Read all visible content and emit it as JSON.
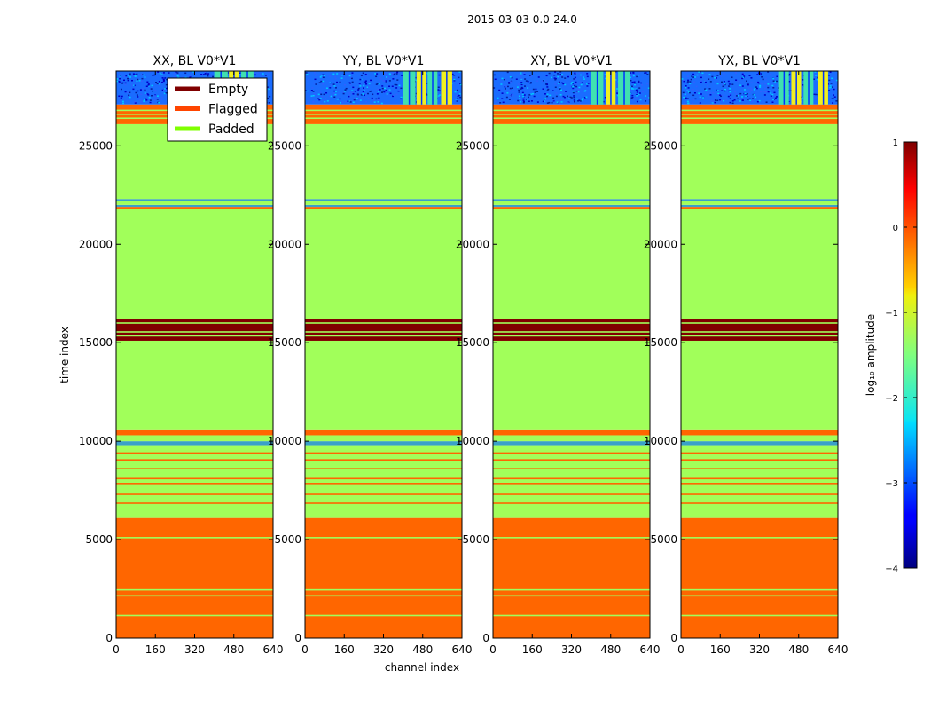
{
  "chart_data": {
    "type": "heatmap",
    "suptitle": "2015-03-03 0.0-24.0",
    "xlabel": "channel index",
    "ylabel": "time index",
    "x_ticks": [
      "0",
      "160",
      "320",
      "480",
      "640"
    ],
    "y_ticks": [
      "0",
      "5000",
      "10000",
      "15000",
      "20000",
      "25000"
    ],
    "x_range": [
      0,
      640
    ],
    "y_range": [
      0,
      28800
    ],
    "panels": [
      {
        "title": "XX, BL V0*V1",
        "hot_bands": [
          [
            400,
            455
          ],
          [
            460,
            500
          ],
          [
            510,
            560
          ]
        ]
      },
      {
        "title": "YY, BL V0*V1",
        "hot_bands": [
          [
            400,
            450
          ],
          [
            455,
            495
          ],
          [
            500,
            540
          ],
          [
            555,
            600
          ]
        ]
      },
      {
        "title": "XY, BL V0*V1",
        "hot_bands": [
          [
            400,
            450
          ],
          [
            460,
            500
          ],
          [
            510,
            560
          ]
        ]
      },
      {
        "title": "YX, BL V0*V1",
        "hot_bands": [
          [
            400,
            440
          ],
          [
            450,
            490
          ],
          [
            500,
            540
          ],
          [
            560,
            600
          ]
        ]
      }
    ],
    "time_segments": [
      {
        "from": 0,
        "to": 6100,
        "fill": "flagged"
      },
      {
        "from": 6100,
        "to": 9800,
        "fill": "padded"
      },
      {
        "from": 9800,
        "to": 10000,
        "fill": "data_mixed"
      },
      {
        "from": 10000,
        "to": 10300,
        "fill": "padded"
      },
      {
        "from": 10300,
        "to": 10600,
        "fill": "flagged"
      },
      {
        "from": 10600,
        "to": 15100,
        "fill": "padded"
      },
      {
        "from": 15100,
        "to": 16200,
        "fill": "empty"
      },
      {
        "from": 16200,
        "to": 21800,
        "fill": "padded"
      },
      {
        "from": 21800,
        "to": 21900,
        "fill": "flagged"
      },
      {
        "from": 21900,
        "to": 22000,
        "fill": "data_mixed"
      },
      {
        "from": 22000,
        "to": 22200,
        "fill": "padded"
      },
      {
        "from": 22200,
        "to": 22300,
        "fill": "data_mixed"
      },
      {
        "from": 22300,
        "to": 26100,
        "fill": "padded"
      },
      {
        "from": 26100,
        "to": 27100,
        "fill": "flagged"
      },
      {
        "from": 27100,
        "to": 28800,
        "fill": "data"
      }
    ],
    "thin_lines": [
      {
        "t": 1150,
        "fill": "padded"
      },
      {
        "t": 2150,
        "fill": "padded"
      },
      {
        "t": 2450,
        "fill": "padded"
      },
      {
        "t": 5100,
        "fill": "padded"
      },
      {
        "t": 6850,
        "fill": "flagged"
      },
      {
        "t": 7300,
        "fill": "flagged"
      },
      {
        "t": 7850,
        "fill": "flagged"
      },
      {
        "t": 8100,
        "fill": "flagged"
      },
      {
        "t": 8600,
        "fill": "flagged"
      },
      {
        "t": 9050,
        "fill": "flagged"
      },
      {
        "t": 9400,
        "fill": "flagged"
      },
      {
        "t": 15350,
        "fill": "padded"
      },
      {
        "t": 15550,
        "fill": "padded"
      },
      {
        "t": 16000,
        "fill": "padded"
      },
      {
        "t": 26400,
        "fill": "padded"
      },
      {
        "t": 26600,
        "fill": "padded"
      },
      {
        "t": 26800,
        "fill": "padded"
      }
    ],
    "legend": {
      "placement": "upper-right of first panel",
      "entries": [
        {
          "label": "Empty",
          "color": "#800000"
        },
        {
          "label": "Flagged",
          "color": "#ff4500"
        },
        {
          "label": "Padded",
          "color": "#7fff00"
        }
      ]
    },
    "colorbar": {
      "label": "log₁₀ amplitude",
      "ticks": [
        "1",
        "0",
        "−1",
        "−2",
        "−3",
        "−4"
      ],
      "range": [
        -4,
        1
      ],
      "colormap": "jet"
    },
    "colors": {
      "flagged": "#ff6600",
      "padded": "#a1ff5a",
      "empty": "#800000",
      "data_bg": "#1a6cff",
      "data_hot_yellow": "#f0f020",
      "data_hot_cyan": "#40e0b0"
    }
  }
}
